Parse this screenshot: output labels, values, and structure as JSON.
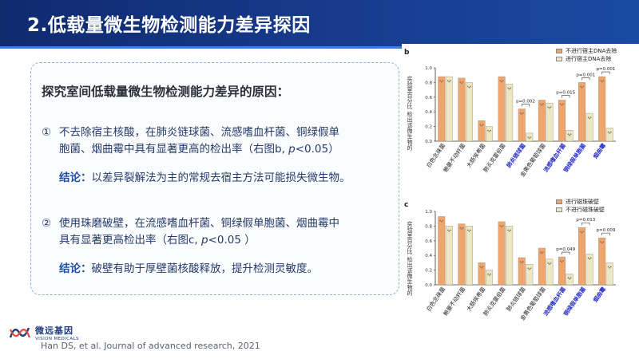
{
  "header": {
    "title": "2.低载量微生物检测能力差异探因"
  },
  "panel": {
    "heading": "探究室间低载量微生物检测能力差异的原因：",
    "points": [
      {
        "marker": "①",
        "line1": "不去除宿主核酸，在肺炎链球菌、流感嗜血杆菌、铜绿假单",
        "line2a": "胞菌、烟曲霉中具有显著更高的检出率（右图b, ",
        "pval": "p",
        "line2b": "<0.05）",
        "conclusion_label": "结论：",
        "conclusion_text": "以差异裂解法为主的常规去宿主方法可能损失微生物。"
      },
      {
        "marker": "②",
        "line1": "使用珠磨破壁，在流感嗜血杆菌、铜绿假单胞菌、烟曲霉中",
        "line2a": "具有显著更高检出率（右图c, ",
        "pval": "p",
        "line2b": "<0.05 ）",
        "conclusion_label": "结论：",
        "conclusion_text": "破壁有助于厚壁菌核酸释放，提升检测灵敏度。"
      }
    ]
  },
  "logo": {
    "cn": "微远基因",
    "en": "VISION MEDICALS"
  },
  "citation": "Han DS, et al. Journal of advanced research, 2021",
  "colors": {
    "orange": "#f0a56c",
    "beige": "#ece7c4",
    "accent_blue": "#1e4fa8",
    "header_dark": "#102a6e",
    "cat_highlight": "#2a2fc8"
  },
  "chart_data": [
    {
      "type": "bar",
      "panel_label": "b",
      "ylabel": "实验室百分比 检出该微生物的",
      "ylim": [
        0,
        1.0
      ],
      "yticks": [
        "0.0",
        "0.2",
        "0.4",
        "0.6",
        "0.8",
        "1.0"
      ],
      "categories": [
        "白色念珠菌",
        "鲍曼不动杆菌",
        "大肠埃希菌",
        "肺炎克雷伯菌",
        "肺炎链球菌",
        "金黄色葡萄球菌",
        "流感嗜血杆菌",
        "铜绿假单胞菌",
        "烟曲霉"
      ],
      "highlight_categories": [
        4,
        6,
        7,
        8
      ],
      "series": [
        {
          "name": "不进行宿主DNA去除",
          "values": [
            0.88,
            0.86,
            0.28,
            0.88,
            0.44,
            0.56,
            0.56,
            0.8,
            0.88
          ]
        },
        {
          "name": "进行宿主DNA去除",
          "values": [
            0.88,
            0.8,
            0.2,
            0.78,
            0.11,
            0.52,
            0.15,
            0.38,
            0.18
          ]
        }
      ],
      "annotations": [
        {
          "between": 4,
          "text": "p=0.002"
        },
        {
          "between": 6,
          "text": "p=0.015"
        },
        {
          "between": 7,
          "text": "p=0.001"
        },
        {
          "between": 8,
          "text": "p=0.001"
        }
      ]
    },
    {
      "type": "bar",
      "panel_label": "c",
      "ylabel": "实验室百分比 检出该微生物的",
      "ylim": [
        0,
        1.0
      ],
      "yticks": [
        "0.0",
        "0.2",
        "0.4",
        "0.6",
        "0.8",
        "1.0"
      ],
      "categories": [
        "白色念珠菌",
        "鲍曼不动杆菌",
        "大肠埃希菌",
        "肺炎克雷伯菌",
        "肺炎链球菌",
        "金黄色葡萄球菌",
        "流感嗜血杆菌",
        "铜绿假单胞菌",
        "烟曲霉"
      ],
      "highlight_categories": [
        6,
        7,
        8
      ],
      "series": [
        {
          "name": "进行磁珠破壁",
          "values": [
            0.93,
            0.83,
            0.3,
            0.86,
            0.37,
            0.5,
            0.38,
            0.78,
            0.64
          ]
        },
        {
          "name": "不进行磁珠破壁",
          "values": [
            0.8,
            0.8,
            0.2,
            0.8,
            0.28,
            0.35,
            0.15,
            0.42,
            0.3
          ]
        }
      ],
      "annotations": [
        {
          "between": 6,
          "text": "p=0.049"
        },
        {
          "between": 7,
          "text": "p=0.013"
        },
        {
          "between": 8,
          "text": "p=0.009"
        }
      ]
    }
  ]
}
